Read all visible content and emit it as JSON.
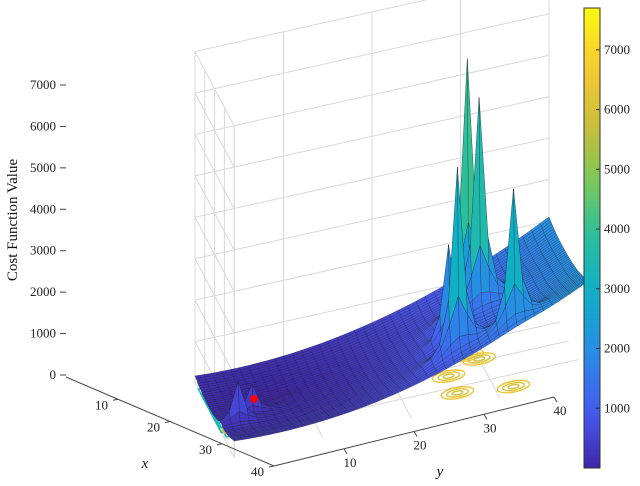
{
  "chart_data": {
    "type": "surface",
    "title": "",
    "xlabel": "x",
    "ylabel": "y",
    "zlabel": "Cost Function Value",
    "x_ticks": [
      10,
      20,
      30,
      40
    ],
    "y_ticks": [
      10,
      20,
      30,
      40
    ],
    "z_ticks": [
      0,
      1000,
      2000,
      3000,
      4000,
      5000,
      6000,
      7000
    ],
    "colorbar_ticks": [
      1000,
      2000,
      3000,
      4000,
      5000,
      6000,
      7000
    ],
    "zlim": [
      0,
      7700
    ],
    "xlim": [
      0,
      40
    ],
    "ylim": [
      0,
      40
    ],
    "colormap": "parula",
    "grid": true,
    "minimum_marker": {
      "x": 15,
      "y": 5,
      "z": 0,
      "color": "#ff0000"
    },
    "peaks": [
      {
        "x": 16,
        "y": 29,
        "z": 7500
      },
      {
        "x": 19,
        "y": 30,
        "z": 6500
      },
      {
        "x": 33,
        "y": 26,
        "z": 6000
      },
      {
        "x": 36,
        "y": 32,
        "z": 4800
      },
      {
        "x": 24,
        "y": 26,
        "z": 3800
      },
      {
        "x": 26,
        "y": 2,
        "z": 2500
      },
      {
        "x": 22,
        "y": 4,
        "z": 2200
      },
      {
        "x": 14,
        "y": 8,
        "z": 1200
      }
    ],
    "contours": true
  }
}
